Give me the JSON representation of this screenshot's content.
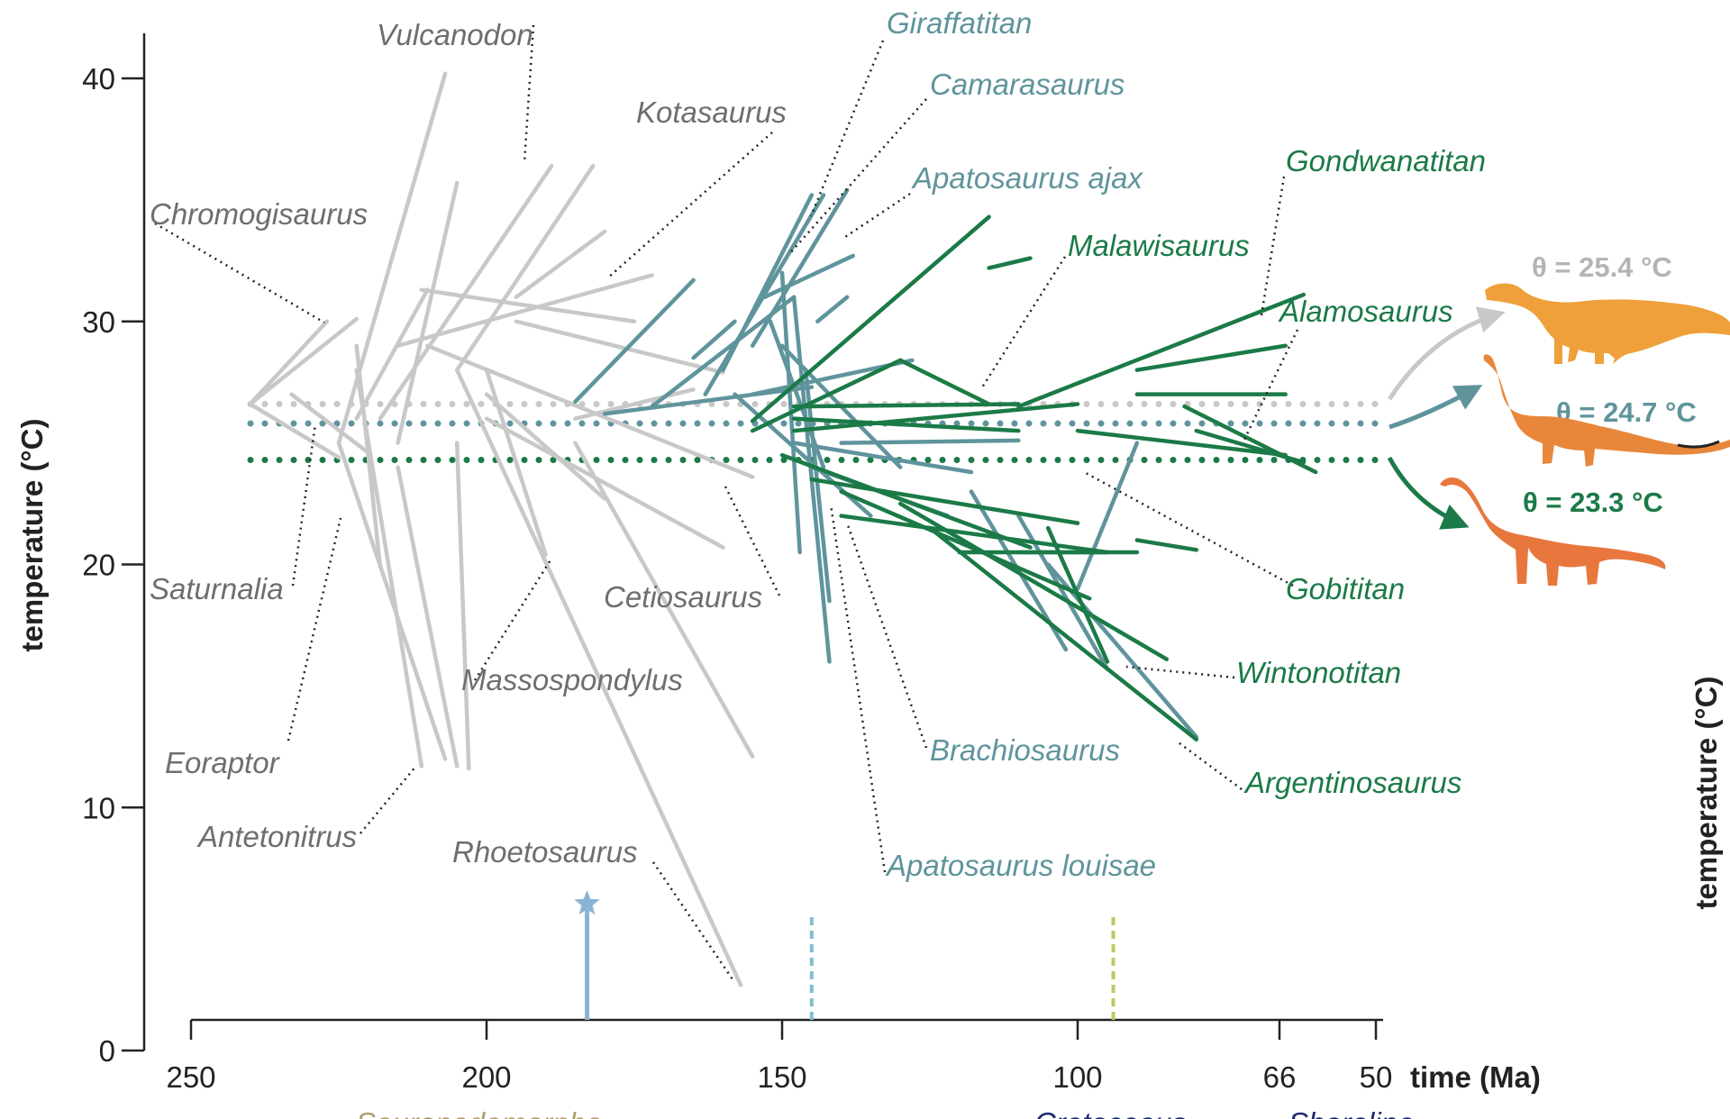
{
  "chart_data": {
    "type": "line",
    "xlabel": "time (Ma)",
    "ylabel": "temperature (°C)",
    "xlim": [
      250,
      50
    ],
    "ylim": [
      0,
      40
    ],
    "x_ticks": [
      250,
      200,
      150,
      100,
      66,
      50
    ],
    "y_ticks": [
      0,
      10,
      20,
      30,
      40
    ],
    "colors": {
      "basal": "#c8c8c8",
      "basal_text": "#6e6e6e",
      "macronaria": "#5f949c",
      "titanosauria": "#1b7a47",
      "axis": "#222222",
      "marker_star": "#8ab4d6",
      "marker_dash_blue": "#7fbfd0",
      "marker_dash_green": "#b6cc62",
      "dino_1": "#f0a03a",
      "dino_2": "#e8863a",
      "dino_3": "#e8773e"
    },
    "optima": [
      {
        "label": "θ = 25.4 °C",
        "value": 26.6,
        "group": "basal"
      },
      {
        "label": "θ = 24.7 °C",
        "value": 25.8,
        "group": "macronaria"
      },
      {
        "label": "θ = 23.3 °C",
        "value": 24.3,
        "group": "titanosauria"
      }
    ],
    "series": [
      {
        "group": "basal",
        "segments": [
          [
            [
              240,
              26.6
            ],
            [
              227,
              30
            ]
          ],
          [
            [
              240,
              26.6
            ],
            [
              222,
              30.1
            ]
          ],
          [
            [
              240,
              26.6
            ],
            [
              225,
              24.4
            ]
          ],
          [
            [
              233,
              27.0
            ],
            [
              220,
              24.6
            ]
          ],
          [
            [
              225,
              25
            ],
            [
              207,
              40.2
            ]
          ],
          [
            [
              218,
              26
            ],
            [
              189,
              36.4
            ]
          ],
          [
            [
              205,
              28
            ],
            [
              182,
              36.4
            ]
          ],
          [
            [
              195,
              31
            ],
            [
              180,
              33.7
            ]
          ],
          [
            [
              215,
              29
            ],
            [
              172,
              31.9
            ]
          ],
          [
            [
              215,
              25
            ],
            [
              205,
              35.7
            ]
          ],
          [
            [
              222,
              26
            ],
            [
              210,
              31.3
            ]
          ],
          [
            [
              211,
              31.3
            ],
            [
              175,
              30.0
            ]
          ],
          [
            [
              195,
              30
            ],
            [
              160,
              27.9
            ]
          ],
          [
            [
              210,
              29
            ],
            [
              155,
              23.6
            ]
          ],
          [
            [
              200,
              26
            ],
            [
              160,
              20.7
            ]
          ],
          [
            [
              185,
              26
            ],
            [
              165,
              27.2
            ]
          ],
          [
            [
              225,
              25
            ],
            [
              207,
              12.0
            ]
          ],
          [
            [
              215,
              24
            ],
            [
              205,
              11.7
            ]
          ],
          [
            [
              205,
              25
            ],
            [
              203,
              11.6
            ]
          ],
          [
            [
              222,
              28
            ],
            [
              211,
              11.7
            ]
          ],
          [
            [
              222,
              29
            ],
            [
              218,
              19.9
            ]
          ],
          [
            [
              200,
              28
            ],
            [
              190,
              20.4
            ]
          ],
          [
            [
              200,
              27
            ],
            [
              180,
              22.7
            ]
          ],
          [
            [
              185,
              25
            ],
            [
              155,
              12.1
            ]
          ],
          [
            [
              205,
              28
            ],
            [
              157,
              2.7
            ]
          ]
        ]
      },
      {
        "group": "macronaria",
        "segments": [
          [
            [
              185,
              26.7
            ],
            [
              165,
              31.7
            ]
          ],
          [
            [
              165,
              28.5
            ],
            [
              158,
              30.0
            ]
          ],
          [
            [
              172,
              26.5
            ],
            [
              148,
              31.0
            ]
          ],
          [
            [
              160,
              28
            ],
            [
              145,
              35.2
            ]
          ],
          [
            [
              163,
              27
            ],
            [
              143,
              35.2
            ]
          ],
          [
            [
              155,
              29
            ],
            [
              139,
              35.4
            ]
          ],
          [
            [
              153,
              31
            ],
            [
              138,
              32.7
            ]
          ],
          [
            [
              152,
              30
            ],
            [
              143,
              24.0
            ]
          ],
          [
            [
              150,
              32
            ],
            [
              147,
              20.5
            ]
          ],
          [
            [
              148,
              31
            ],
            [
              142,
              16.0
            ]
          ],
          [
            [
              146,
              28
            ],
            [
              142,
              18.5
            ]
          ],
          [
            [
              144,
              30
            ],
            [
              139,
              31.0
            ]
          ],
          [
            [
              158,
              27
            ],
            [
              135,
              22.0
            ]
          ],
          [
            [
              155,
              27
            ],
            [
              128,
              28.4
            ]
          ],
          [
            [
              150,
              29
            ],
            [
              130,
              24.0
            ]
          ],
          [
            [
              148,
              25
            ],
            [
              118,
              23.8
            ]
          ],
          [
            [
              145,
              24
            ],
            [
              122,
              22.0
            ]
          ],
          [
            [
              140,
              25
            ],
            [
              110,
              25.1
            ]
          ],
          [
            [
              118,
              23
            ],
            [
              102,
              16.5
            ]
          ],
          [
            [
              110,
              22
            ],
            [
              95,
              15.7
            ]
          ],
          [
            [
              105,
              20
            ],
            [
              80,
              12.9
            ]
          ],
          [
            [
              100,
              19
            ],
            [
              90,
              25.0
            ]
          ],
          [
            [
              180,
              26.2
            ],
            [
              145,
              27.3
            ]
          ]
        ]
      },
      {
        "group": "titanosauria",
        "segments": [
          [
            [
              155,
              25.9
            ],
            [
              115,
              34.3
            ]
          ],
          [
            [
              115,
              32.2
            ],
            [
              108,
              32.6
            ]
          ],
          [
            [
              155,
              25.5
            ],
            [
              130,
              28.4
            ]
          ],
          [
            [
              130,
              28.4
            ],
            [
              115,
              26.6
            ]
          ],
          [
            [
              148,
              26.5
            ],
            [
              110,
              26.6
            ]
          ],
          [
            [
              148,
              26.0
            ],
            [
              110,
              25.5
            ]
          ],
          [
            [
              148,
              25.5
            ],
            [
              100,
              26.6
            ]
          ],
          [
            [
              150,
              24.5
            ],
            [
              108,
              20.7
            ]
          ],
          [
            [
              145,
              23.5
            ],
            [
              100,
              21.7
            ]
          ],
          [
            [
              140,
              22.0
            ],
            [
              95,
              20.5
            ]
          ],
          [
            [
              140,
              23.0
            ],
            [
              98,
              18.6
            ]
          ],
          [
            [
              130,
              22.5
            ],
            [
              85,
              16.1
            ]
          ],
          [
            [
              125,
              21.5
            ],
            [
              80,
              12.8
            ]
          ],
          [
            [
              120,
              20.5
            ],
            [
              90,
              20.5
            ]
          ],
          [
            [
              110,
              20.5
            ],
            [
              95,
              20.5
            ]
          ],
          [
            [
              100,
              25.5
            ],
            [
              65,
              24.5
            ]
          ],
          [
            [
              110,
              26.5
            ],
            [
              62,
              31.1
            ]
          ],
          [
            [
              90,
              27.0
            ],
            [
              65,
              27.0
            ]
          ],
          [
            [
              82,
              26.5
            ],
            [
              60,
              23.8
            ]
          ],
          [
            [
              80,
              25.5
            ],
            [
              62,
              24.2
            ]
          ],
          [
            [
              90,
              21.0
            ],
            [
              80,
              20.6
            ]
          ],
          [
            [
              105,
              21.5
            ],
            [
              95,
              16.0
            ]
          ],
          [
            [
              90,
              28.0
            ],
            [
              65,
              29.0
            ]
          ]
        ]
      }
    ],
    "annotations": [
      {
        "text": "Vulcanodon",
        "group": "basal"
      },
      {
        "text": "Kotasaurus",
        "group": "basal"
      },
      {
        "text": "Chromogisaurus",
        "group": "basal"
      },
      {
        "text": "Saturnalia",
        "group": "basal"
      },
      {
        "text": "Eoraptor",
        "group": "basal"
      },
      {
        "text": "Antetonitrus",
        "group": "basal"
      },
      {
        "text": "Massospondylus",
        "group": "basal"
      },
      {
        "text": "Cetiosaurus",
        "group": "basal"
      },
      {
        "text": "Rhoetosaurus",
        "group": "basal"
      },
      {
        "text": "Giraffatitan",
        "group": "macronaria"
      },
      {
        "text": "Camarasaurus",
        "group": "macronaria"
      },
      {
        "text": "Apatosaurus ajax",
        "group": "macronaria"
      },
      {
        "text": "Brachiosaurus",
        "group": "macronaria"
      },
      {
        "text": "Apatosaurus louisae",
        "group": "macronaria"
      },
      {
        "text": "Gondwanatitan",
        "group": "titanosauria"
      },
      {
        "text": "Malawisaurus",
        "group": "titanosauria"
      },
      {
        "text": "Alamosaurus",
        "group": "titanosauria"
      },
      {
        "text": "Gobititan",
        "group": "titanosauria"
      },
      {
        "text": "Wintonotitan",
        "group": "titanosauria"
      },
      {
        "text": "Argentinosaurus",
        "group": "titanosauria"
      }
    ],
    "markers": [
      {
        "type": "star",
        "time": 183
      },
      {
        "type": "dashed",
        "time": 145,
        "color_key": "marker_dash_blue"
      },
      {
        "type": "dashed",
        "time": 94,
        "color_key": "marker_dash_green"
      }
    ],
    "dino_icons": [
      "dinosaur-silhouette-icon",
      "diplodocid-silhouette-icon",
      "brachiosaur-silhouette-icon"
    ]
  },
  "cut_labels": [
    {
      "text": "Sauropodomorpha",
      "color": "#b0a070"
    },
    {
      "text": "Cretaceous",
      "color": "#1f2a6e"
    },
    {
      "text": "Shoreline",
      "color": "#1f2a6e"
    },
    {
      "text": "temperature (°C)",
      "color": "#222222"
    }
  ]
}
